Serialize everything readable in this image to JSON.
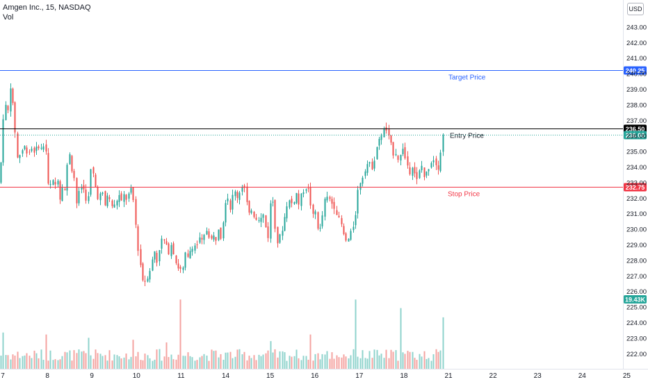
{
  "legend": {
    "title": "Amgen Inc., 15, NASDAQ",
    "volume_label": "Vol"
  },
  "currency_button": "USD",
  "colors": {
    "up": "#26a69a",
    "down": "#ef5350",
    "vol_up": "#8fd3cc",
    "vol_down": "#f4a3a0",
    "target": "#2962ff",
    "entry": "#000000",
    "stop": "#f23645",
    "last": "#26a69a"
  },
  "chart_data": {
    "type": "candlestick",
    "title": "Amgen Inc., 15, NASDAQ",
    "ylim": [
      221.0,
      244.0
    ],
    "y_ticks": [
      "222.00",
      "223.00",
      "224.00",
      "225.00",
      "226.00",
      "227.00",
      "228.00",
      "229.00",
      "230.00",
      "231.00",
      "232.00",
      "233.00",
      "234.00",
      "235.00",
      "236.00",
      "237.00",
      "238.00",
      "239.00",
      "240.00",
      "241.00",
      "242.00",
      "243.00"
    ],
    "x_ticks": [
      "7",
      "8",
      "9",
      "10",
      "11",
      "14",
      "15",
      "16",
      "17",
      "18",
      "21",
      "22",
      "23",
      "24",
      "25"
    ],
    "levels": [
      {
        "name": "Target Price",
        "value": 240.25,
        "label": "240.25",
        "color": "#2962ff"
      },
      {
        "name": "Entry Price",
        "value": 236.5,
        "label": "236.50",
        "color": "#000000"
      },
      {
        "name": "Stop Price",
        "value": 232.75,
        "label": "232.75",
        "color": "#f23645"
      }
    ],
    "last_price": {
      "value": 236.08,
      "label": "236.08"
    },
    "last_volume": {
      "label": "19.43K"
    },
    "close_path": [
      [
        0,
        233.0
      ],
      [
        3,
        236.8
      ],
      [
        7,
        238.0
      ],
      [
        11,
        237.5
      ],
      [
        15,
        239.4
      ],
      [
        20,
        237.0
      ],
      [
        25,
        234.5
      ],
      [
        30,
        235.0
      ],
      [
        35,
        235.3
      ],
      [
        40,
        234.9
      ],
      [
        45,
        235.2
      ],
      [
        50,
        235.0
      ],
      [
        55,
        235.4
      ],
      [
        60,
        235.1
      ],
      [
        64,
        235.6
      ],
      [
        67,
        234.5
      ],
      [
        70,
        232.0
      ],
      [
        74,
        233.4
      ],
      [
        78,
        232.6
      ],
      [
        82,
        233.5
      ],
      [
        86,
        232.0
      ],
      [
        90,
        233.0
      ],
      [
        94,
        232.3
      ],
      [
        98,
        235.5
      ],
      [
        102,
        234.0
      ],
      [
        106,
        233.5
      ],
      [
        110,
        231.6
      ],
      [
        114,
        232.5
      ],
      [
        118,
        232.9
      ],
      [
        122,
        232.2
      ],
      [
        126,
        231.6
      ],
      [
        130,
        233.8
      ],
      [
        134,
        233.5
      ],
      [
        138,
        232.4
      ],
      [
        142,
        231.9
      ],
      [
        146,
        232.6
      ],
      [
        150,
        231.4
      ],
      [
        154,
        232.2
      ],
      [
        158,
        231.8
      ],
      [
        162,
        231.4
      ],
      [
        166,
        231.6
      ],
      [
        170,
        232.3
      ],
      [
        174,
        231.7
      ],
      [
        178,
        232.2
      ],
      [
        182,
        231.9
      ],
      [
        186,
        232.4
      ],
      [
        190,
        232.6
      ],
      [
        193,
        231.0
      ],
      [
        195,
        230.2
      ],
      [
        198,
        228.8
      ],
      [
        202,
        227.6
      ],
      [
        206,
        226.5
      ],
      [
        210,
        226.8
      ],
      [
        214,
        227.2
      ],
      [
        218,
        227.9
      ],
      [
        222,
        228.6
      ],
      [
        226,
        227.8
      ],
      [
        230,
        229.2
      ],
      [
        234,
        229.4
      ],
      [
        238,
        229.0
      ],
      [
        242,
        228.5
      ],
      [
        246,
        229.1
      ],
      [
        250,
        228.4
      ],
      [
        254,
        227.6
      ],
      [
        258,
        227.5
      ],
      [
        262,
        227.2
      ],
      [
        266,
        228.4
      ],
      [
        270,
        228.1
      ],
      [
        274,
        228.8
      ],
      [
        278,
        229.0
      ],
      [
        282,
        228.9
      ],
      [
        286,
        229.4
      ],
      [
        290,
        229.2
      ],
      [
        294,
        229.6
      ],
      [
        298,
        230.1
      ],
      [
        302,
        229.2
      ],
      [
        306,
        229.6
      ],
      [
        310,
        229.3
      ],
      [
        314,
        230.2
      ],
      [
        318,
        229.4
      ],
      [
        322,
        231.2
      ],
      [
        326,
        232.5
      ],
      [
        330,
        231.2
      ],
      [
        334,
        232.1
      ],
      [
        338,
        232.4
      ],
      [
        342,
        232.0
      ],
      [
        346,
        232.7
      ],
      [
        350,
        233.0
      ],
      [
        354,
        231.8
      ],
      [
        358,
        230.9
      ],
      [
        362,
        231.4
      ],
      [
        366,
        230.7
      ],
      [
        370,
        230.8
      ],
      [
        374,
        230.6
      ],
      [
        378,
        231.0
      ],
      [
        382,
        230.1
      ],
      [
        386,
        229.4
      ],
      [
        390,
        232.8
      ],
      [
        394,
        230.8
      ],
      [
        398,
        229.1
      ],
      [
        402,
        229.5
      ],
      [
        406,
        230.1
      ],
      [
        410,
        231.0
      ],
      [
        414,
        232.0
      ],
      [
        418,
        231.6
      ],
      [
        422,
        231.8
      ],
      [
        426,
        232.3
      ],
      [
        430,
        231.5
      ],
      [
        434,
        232.4
      ],
      [
        438,
        232.6
      ],
      [
        442,
        232.8
      ],
      [
        446,
        231.7
      ],
      [
        450,
        230.8
      ],
      [
        454,
        231.2
      ],
      [
        458,
        229.6
      ],
      [
        462,
        230.4
      ],
      [
        466,
        231.8
      ],
      [
        470,
        232.0
      ],
      [
        474,
        231.9
      ],
      [
        478,
        231.6
      ],
      [
        482,
        231.4
      ],
      [
        486,
        230.7
      ],
      [
        490,
        230.4
      ],
      [
        494,
        229.6
      ],
      [
        498,
        229.2
      ],
      [
        502,
        229.4
      ],
      [
        506,
        230.0
      ],
      [
        510,
        230.6
      ],
      [
        514,
        232.4
      ],
      [
        518,
        233.1
      ],
      [
        522,
        233.5
      ],
      [
        526,
        234.1
      ],
      [
        530,
        234.3
      ],
      [
        534,
        233.9
      ],
      [
        538,
        234.5
      ],
      [
        542,
        235.4
      ],
      [
        546,
        235.8
      ],
      [
        550,
        236.3
      ],
      [
        554,
        236.5
      ],
      [
        558,
        236.0
      ],
      [
        562,
        235.4
      ],
      [
        566,
        234.8
      ],
      [
        570,
        235.0
      ],
      [
        574,
        234.2
      ],
      [
        578,
        235.5
      ],
      [
        582,
        234.6
      ],
      [
        586,
        234.1
      ],
      [
        590,
        233.6
      ],
      [
        594,
        234.4
      ],
      [
        598,
        232.9
      ],
      [
        602,
        233.6
      ],
      [
        606,
        234.1
      ],
      [
        610,
        233.3
      ],
      [
        614,
        233.7
      ],
      [
        618,
        234.2
      ],
      [
        622,
        234.6
      ],
      [
        626,
        234.3
      ],
      [
        630,
        234.0
      ],
      [
        634,
        235.2
      ],
      [
        638,
        236.08
      ]
    ],
    "volume_spikes": [
      {
        "x": 3,
        "rel": 0.55
      },
      {
        "x": 66,
        "rel": 0.52
      },
      {
        "x": 128,
        "rel": 0.47
      },
      {
        "x": 193,
        "rel": 0.44
      },
      {
        "x": 240,
        "rel": 0.4
      },
      {
        "x": 258,
        "rel": 1.05
      },
      {
        "x": 388,
        "rel": 0.42
      },
      {
        "x": 447,
        "rel": 0.52
      },
      {
        "x": 511,
        "rel": 1.05
      },
      {
        "x": 575,
        "rel": 0.92
      },
      {
        "x": 638,
        "rel": 0.78
      }
    ]
  }
}
